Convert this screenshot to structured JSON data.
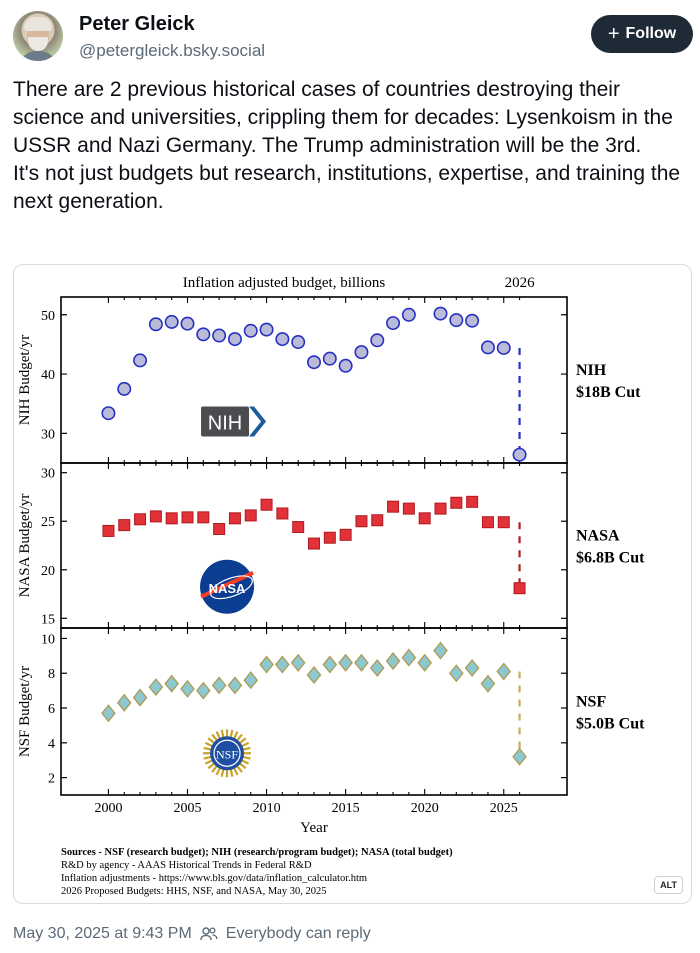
{
  "author": {
    "name": "Peter Gleick",
    "handle": "@petergleick.bsky.social"
  },
  "follow_label": "Follow",
  "post": {
    "paragraphs": [
      "There are 2 previous historical cases of countries destroying their science and universities, crippling them for decades: Lysenkoism in the USSR and Nazi Germany. The Trump administration will be the 3rd.",
      "It's not just budgets but research, institutions, expertise, and training the next generation."
    ]
  },
  "figure": {
    "title": "Inflation adjusted budget, billions",
    "year_marker": "2026",
    "xlabel": "Year",
    "sources": [
      "Sources - NSF (research budget); NIH (research/program budget); NASA (total budget)",
      "R&D by agency - AAAS Historical Trends in Federal R&D",
      "Inflation adjustments - https://www.bls.gov/data/inflation_calculator.htm",
      "2026 Proposed Budgets: HHS, NSF, and NASA, May 30, 2025"
    ],
    "alt_badge": "ALT"
  },
  "chart_data": [
    {
      "type": "scatter",
      "title": "Inflation adjusted budget, billions",
      "xlabel": "Year",
      "ylabel": "NIH Budget/yr",
      "xlim": [
        1997,
        2029
      ],
      "ylim": [
        25,
        53
      ],
      "yticks": [
        30,
        40,
        50
      ],
      "xticks": [
        2000,
        2005,
        2010,
        2015,
        2020,
        2025
      ],
      "logo_text": "NIH",
      "cut_label": [
        "NIH",
        "$18B Cut"
      ],
      "color": "#b9bbd8",
      "edge_color": "#2730c4",
      "x": [
        2000,
        2001,
        2002,
        2003,
        2004,
        2005,
        2006,
        2007,
        2008,
        2009,
        2010,
        2011,
        2012,
        2013,
        2014,
        2015,
        2016,
        2017,
        2018,
        2019,
        2021,
        2022,
        2023,
        2024,
        2025
      ],
      "y": [
        33.4,
        37.5,
        42.3,
        48.4,
        48.8,
        48.5,
        46.7,
        46.5,
        45.9,
        47.3,
        47.5,
        45.9,
        45.4,
        42.0,
        42.6,
        41.4,
        43.7,
        45.7,
        48.6,
        50.0,
        50.2,
        49.1,
        49.0,
        44.5,
        44.4
      ],
      "proposed": {
        "from": [
          2025,
          44.4
        ],
        "to": [
          2026,
          26.4
        ]
      }
    },
    {
      "type": "scatter",
      "ylabel": "NASA Budget/yr",
      "xlim": [
        1997,
        2029
      ],
      "ylim": [
        14,
        31
      ],
      "yticks": [
        15,
        20,
        25,
        30
      ],
      "logo_text": "NASA",
      "cut_label": [
        "NASA",
        "$6.8B Cut"
      ],
      "color": "#e03238",
      "edge_color": "#b01a20",
      "x": [
        2000,
        2001,
        2002,
        2003,
        2004,
        2005,
        2006,
        2007,
        2008,
        2009,
        2010,
        2011,
        2012,
        2013,
        2014,
        2015,
        2016,
        2017,
        2018,
        2019,
        2020,
        2021,
        2022,
        2023,
        2024,
        2025
      ],
      "y": [
        24.0,
        24.6,
        25.2,
        25.5,
        25.3,
        25.4,
        25.4,
        24.2,
        25.3,
        25.6,
        26.7,
        25.8,
        24.4,
        22.7,
        23.3,
        23.6,
        25.0,
        25.1,
        26.5,
        26.3,
        25.3,
        26.3,
        26.9,
        27.0,
        24.9,
        24.9
      ],
      "proposed": {
        "from": [
          2025,
          24.9
        ],
        "to": [
          2026,
          18.1
        ]
      }
    },
    {
      "type": "scatter",
      "ylabel": "NSF Budget/yr",
      "xlim": [
        1997,
        2029
      ],
      "ylim": [
        1,
        10.6
      ],
      "yticks": [
        2,
        4,
        6,
        8,
        10
      ],
      "logo_text": "NSF",
      "cut_label": [
        "NSF",
        "$5.0B Cut"
      ],
      "color": "#8cc8d0",
      "edge_color": "#b09a52",
      "x": [
        2000,
        2001,
        2002,
        2003,
        2004,
        2005,
        2006,
        2007,
        2008,
        2009,
        2010,
        2011,
        2012,
        2013,
        2014,
        2015,
        2016,
        2017,
        2018,
        2019,
        2020,
        2021,
        2022,
        2023,
        2024,
        2025
      ],
      "y": [
        5.7,
        6.3,
        6.6,
        7.2,
        7.4,
        7.1,
        7.0,
        7.3,
        7.3,
        7.6,
        8.5,
        8.5,
        8.6,
        7.9,
        8.5,
        8.6,
        8.6,
        8.3,
        8.7,
        8.9,
        8.6,
        9.3,
        8.0,
        8.3,
        7.4,
        8.1
      ],
      "proposed": {
        "from": [
          2025,
          8.1
        ],
        "to": [
          2026,
          3.2
        ]
      }
    }
  ],
  "footer": {
    "timestamp": "May 30, 2025 at 9:43 PM",
    "reply_setting": "Everybody can reply"
  }
}
